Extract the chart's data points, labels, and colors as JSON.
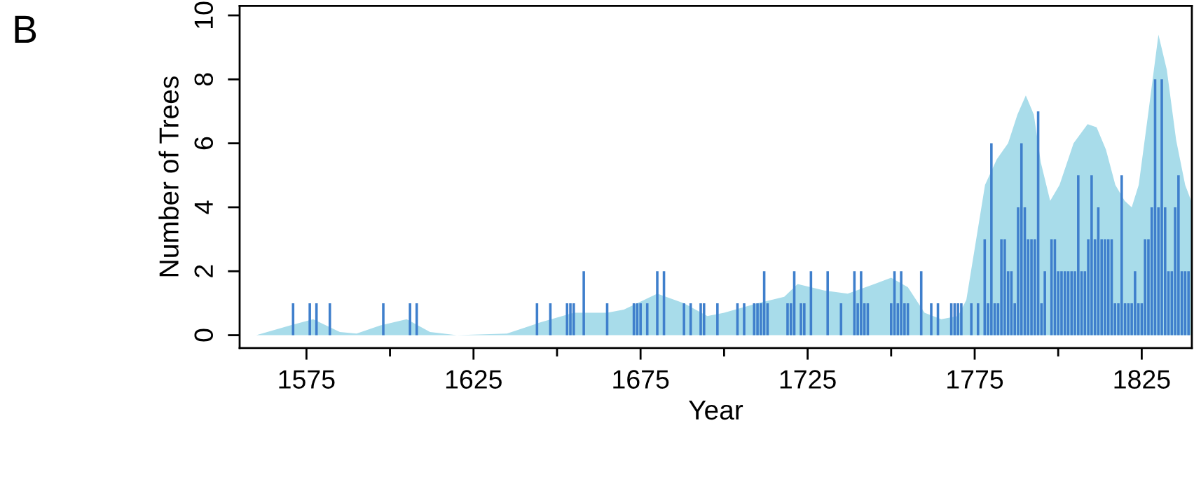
{
  "chart_data": {
    "type": "bar",
    "xlabel": "Year",
    "ylabel": "Number of Trees",
    "annotations": [
      "B"
    ],
    "xlim": [
      1555,
      1840
    ],
    "ylim": [
      -0.4,
      10.3
    ],
    "xticks": [
      1575,
      {
        "value": 1600,
        "label": null
      },
      1625,
      {
        "value": 1650,
        "label": null
      },
      1675,
      {
        "value": 1700,
        "label": null
      },
      1725,
      {
        "value": 1750,
        "label": null
      },
      1775,
      {
        "value": 1800,
        "label": null
      },
      1825
    ],
    "yticks": [
      0,
      2,
      4,
      6,
      8,
      10
    ],
    "grid": false,
    "legend": false,
    "series": [
      {
        "type": "area",
        "color": "#a8dcea",
        "x": [
          1560,
          1570,
          1577,
          1585,
          1590,
          1597,
          1605,
          1612,
          1620,
          1635,
          1645,
          1655,
          1665,
          1670,
          1680,
          1688,
          1695,
          1700,
          1710,
          1718,
          1722,
          1730,
          1737,
          1745,
          1750,
          1755,
          1760,
          1765,
          1770,
          1772.5,
          1775.3,
          1778.1,
          1781.6,
          1785,
          1787.8,
          1790.3,
          1792.7,
          1794.8,
          1797.6,
          1800.4,
          1804.6,
          1808.8,
          1811.5,
          1814.3,
          1817.1,
          1819.9,
          1822,
          1824.1,
          1826.9,
          1830,
          1832.5,
          1835.3,
          1838,
          1839.8
        ],
        "values": [
          0,
          0.3,
          0.5,
          0.1,
          0.05,
          0.3,
          0.5,
          0.1,
          0,
          0.05,
          0.4,
          0.7,
          0.7,
          0.8,
          1.3,
          1.0,
          0.6,
          0.7,
          1.0,
          1.2,
          1.6,
          1.4,
          1.3,
          1.6,
          1.8,
          1.5,
          0.7,
          0.5,
          0.6,
          1.1,
          2.9,
          4.7,
          5.5,
          6.0,
          6.9,
          7.5,
          6.9,
          5.4,
          4.2,
          4.7,
          6.0,
          6.6,
          6.5,
          5.8,
          4.7,
          4.2,
          4.0,
          4.7,
          6.9,
          9.4,
          8.3,
          6.1,
          4.7,
          4.2
        ]
      },
      {
        "color": "#3f7fcc",
        "x": [
          1571,
          1576,
          1578,
          1582,
          1598,
          1606,
          1608,
          1644,
          1648,
          1653,
          1654,
          1655,
          1658,
          1665,
          1673,
          1674,
          1675,
          1677,
          1680,
          1682,
          1688,
          1690,
          1693,
          1694,
          1698,
          1704,
          1706,
          1709,
          1710,
          1711,
          1712,
          1713,
          1719,
          1720,
          1721,
          1723,
          1724,
          1726,
          1731,
          1735,
          1739,
          1740,
          1741,
          1742,
          1743,
          1750,
          1751,
          1752,
          1753,
          1754,
          1755,
          1759,
          1762,
          1764,
          1768,
          1769,
          1770,
          1771,
          1774,
          1776,
          1778,
          1779,
          1780,
          1781,
          1782,
          1783,
          1784,
          1785,
          1786,
          1787,
          1788,
          1789,
          1790,
          1791,
          1792,
          1793,
          1794,
          1795,
          1796,
          1798,
          1799,
          1800,
          1801,
          1802,
          1803,
          1804,
          1805,
          1806,
          1807,
          1808,
          1809,
          1810,
          1811,
          1812,
          1813,
          1814,
          1815,
          1816,
          1817,
          1818,
          1819,
          1820,
          1821,
          1822,
          1823,
          1824,
          1825,
          1826,
          1827,
          1828,
          1829,
          1830,
          1831,
          1832,
          1833,
          1834,
          1835,
          1836,
          1837,
          1838,
          1839
        ],
        "values": [
          1,
          1,
          1,
          1,
          1,
          1,
          1,
          1,
          1,
          1,
          1,
          1,
          2,
          1,
          1,
          1,
          1,
          1,
          2,
          2,
          1,
          1,
          1,
          1,
          1,
          1,
          1,
          1,
          1,
          1,
          2,
          1,
          1,
          1,
          2,
          1,
          1,
          2,
          2,
          1,
          2,
          1,
          2,
          1,
          1,
          1,
          2,
          1,
          2,
          1,
          1,
          2,
          1,
          1,
          1,
          1,
          1,
          1,
          1,
          1,
          3,
          1,
          6,
          1,
          1,
          3,
          3,
          2,
          2,
          1,
          4,
          6,
          4,
          3,
          3,
          3,
          7,
          1,
          2,
          3,
          3,
          2,
          2,
          2,
          2,
          2,
          2,
          5,
          2,
          2,
          3,
          5,
          3,
          4,
          3,
          3,
          3,
          3,
          1,
          1,
          5,
          1,
          1,
          1,
          2,
          1,
          1,
          3,
          3,
          4,
          8,
          4,
          8,
          4,
          2,
          2,
          4,
          5,
          2,
          2,
          2
        ]
      }
    ]
  }
}
